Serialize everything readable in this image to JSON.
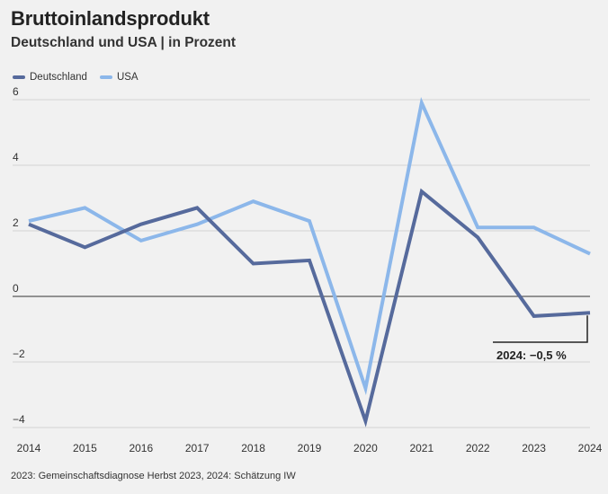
{
  "header": {
    "title": "Bruttoinlandsprodukt",
    "subtitle": "Deutschland und USA | in Prozent"
  },
  "source": "2023: Gemeinschaftsdiagnose Herbst 2023, 2024: Schätzung IW",
  "colors": {
    "deutschland": "#566a9c",
    "usa": "#8cb7ea",
    "grid": "#d4d4d4",
    "zero": "#333333"
  },
  "chart_data": {
    "type": "line",
    "title": "Bruttoinlandsprodukt",
    "subtitle": "Deutschland und USA | in Prozent",
    "x": [
      "2014",
      "2015",
      "2016",
      "2017",
      "2018",
      "2019",
      "2020",
      "2021",
      "2022",
      "2023",
      "2024"
    ],
    "ylim": [
      -4,
      6
    ],
    "yticks": [
      {
        "v": 6,
        "label": "6"
      },
      {
        "v": 4,
        "label": "4"
      },
      {
        "v": 2,
        "label": "2"
      },
      {
        "v": 0,
        "label": "0"
      },
      {
        "v": -2,
        "label": "−2"
      },
      {
        "v": -4,
        "label": "−4"
      }
    ],
    "grid": true,
    "legend_position": "top-left",
    "series": [
      {
        "name": "Deutschland",
        "color": "#566a9c",
        "values": [
          2.2,
          1.5,
          2.2,
          2.7,
          1.0,
          1.1,
          -3.8,
          3.2,
          1.8,
          -0.6,
          -0.5
        ]
      },
      {
        "name": "USA",
        "color": "#8cb7ea",
        "values": [
          2.3,
          2.7,
          1.7,
          2.2,
          2.9,
          2.3,
          -2.8,
          5.9,
          2.1,
          2.1,
          1.3
        ]
      }
    ],
    "annotation": {
      "text": "2024: −0,5 %",
      "x": "2024",
      "series": "Deutschland"
    }
  }
}
